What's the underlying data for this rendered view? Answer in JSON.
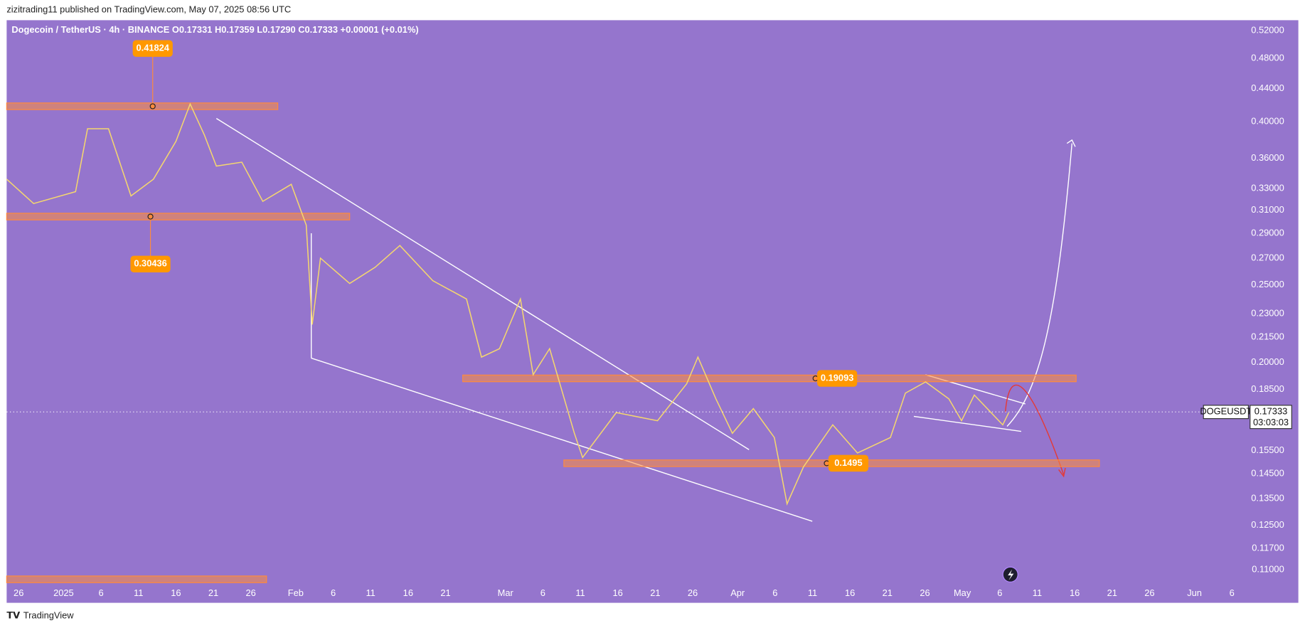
{
  "header": {
    "published": "zizitrading11 published on TradingView.com, May 07, 2025 08:56 UTC",
    "legend": "Dogecoin / TetherUS · 4h · BINANCE  O0.17331  H0.17359  L0.17290  C0.17333  +0.00001 (+0.01%)"
  },
  "footer": {
    "brand": "TradingView"
  },
  "chart_data": {
    "type": "line",
    "log_scale": true,
    "grid": false,
    "x": [
      -1.6,
      2,
      7.6,
      9.2,
      12,
      15,
      18,
      21,
      22.9,
      24.8,
      26.4,
      29.8,
      32.6,
      36.4,
      38.4,
      39.2,
      40.3,
      44.2,
      47.6,
      50.9,
      55.3,
      59.8,
      61.8,
      64.2,
      67,
      68.7,
      70.9,
      74.2,
      75.3,
      79.8,
      85.3,
      89.2,
      90.7,
      93.1,
      95.3,
      98.1,
      100.9,
      102.6,
      104.8,
      108.7,
      112,
      116.4,
      118.4,
      121.1,
      124.2,
      125.9,
      127.6,
      131.4,
      132.2
    ],
    "series": [
      {
        "name": "DOGEUSDT",
        "color": "#f5d76e",
        "values": [
          0.339,
          0.316,
          0.327,
          0.392,
          0.392,
          0.323,
          0.339,
          0.378,
          0.421,
          0.385,
          0.352,
          0.356,
          0.318,
          0.334,
          0.297,
          0.223,
          0.27,
          0.251,
          0.263,
          0.28,
          0.253,
          0.24,
          0.203,
          0.208,
          0.24,
          0.193,
          0.208,
          0.163,
          0.152,
          0.173,
          0.169,
          0.188,
          0.203,
          0.18,
          0.163,
          0.175,
          0.161,
          0.133,
          0.148,
          0.167,
          0.154,
          0.161,
          0.183,
          0.189,
          0.18,
          0.169,
          0.182,
          0.167,
          0.173
        ]
      }
    ],
    "current_price": 0.17333,
    "countdown": "03:03:03",
    "levels": [
      {
        "price": 0.41824,
        "from": -1.6,
        "to": 34.6,
        "marker": 17.9
      },
      {
        "price": 0.30436,
        "from": -1.6,
        "to": 44.2,
        "marker": 17.6
      },
      {
        "price": 0.19093,
        "from": 59.3,
        "to": 141.2,
        "marker": 106.4
      },
      {
        "price": 0.1495,
        "from": 72.8,
        "to": 144.3,
        "marker": 107.9
      },
      {
        "price": 0.107,
        "from": -1.6,
        "to": 33.1
      }
    ],
    "xlim": [
      -1.6,
      164.2
    ],
    "ylim": [
      0.1,
      0.536
    ],
    "xticks": [
      {
        "value": 0,
        "label": "26"
      },
      {
        "value": 6,
        "label": "2025"
      },
      {
        "value": 11,
        "label": "6"
      },
      {
        "value": 16,
        "label": "11"
      },
      {
        "value": 21,
        "label": "16"
      },
      {
        "value": 26,
        "label": "21"
      },
      {
        "value": 31,
        "label": "26"
      },
      {
        "value": 37,
        "label": "Feb"
      },
      {
        "value": 42,
        "label": "6"
      },
      {
        "value": 47,
        "label": "11"
      },
      {
        "value": 52,
        "label": "16"
      },
      {
        "value": 57,
        "label": "21"
      },
      {
        "value": 65,
        "label": "Mar"
      },
      {
        "value": 70,
        "label": "6"
      },
      {
        "value": 75,
        "label": "11"
      },
      {
        "value": 80,
        "label": "16"
      },
      {
        "value": 85,
        "label": "21"
      },
      {
        "value": 90,
        "label": "26"
      },
      {
        "value": 96,
        "label": "Apr"
      },
      {
        "value": 101,
        "label": "6"
      },
      {
        "value": 106,
        "label": "11"
      },
      {
        "value": 111,
        "label": "16"
      },
      {
        "value": 116,
        "label": "21"
      },
      {
        "value": 121,
        "label": "26"
      },
      {
        "value": 126,
        "label": "May"
      },
      {
        "value": 131,
        "label": "6"
      },
      {
        "value": 136,
        "label": "11"
      },
      {
        "value": 141,
        "label": "16"
      },
      {
        "value": 146,
        "label": "21"
      },
      {
        "value": 151,
        "label": "26"
      },
      {
        "value": 157,
        "label": "Jun"
      },
      {
        "value": 162,
        "label": "6"
      }
    ],
    "yticks": [
      {
        "value": 0.52,
        "label": "0.52000"
      },
      {
        "value": 0.48,
        "label": "0.48000"
      },
      {
        "value": 0.44,
        "label": "0.44000"
      },
      {
        "value": 0.4,
        "label": "0.40000"
      },
      {
        "value": 0.36,
        "label": "0.36000"
      },
      {
        "value": 0.33,
        "label": "0.33000"
      },
      {
        "value": 0.31,
        "label": "0.31000"
      },
      {
        "value": 0.29,
        "label": "0.29000"
      },
      {
        "value": 0.27,
        "label": "0.27000"
      },
      {
        "value": 0.25,
        "label": "0.25000"
      },
      {
        "value": 0.23,
        "label": "0.23000"
      },
      {
        "value": 0.215,
        "label": "0.21500"
      },
      {
        "value": 0.2,
        "label": "0.20000"
      },
      {
        "value": 0.185,
        "label": "0.18500"
      },
      {
        "value": 0.155,
        "label": "0.15500"
      },
      {
        "value": 0.145,
        "label": "0.14500"
      },
      {
        "value": 0.135,
        "label": "0.13500"
      },
      {
        "value": 0.125,
        "label": "0.12500"
      },
      {
        "value": 0.117,
        "label": "0.11700"
      },
      {
        "value": 0.11,
        "label": "0.11000"
      }
    ]
  }
}
